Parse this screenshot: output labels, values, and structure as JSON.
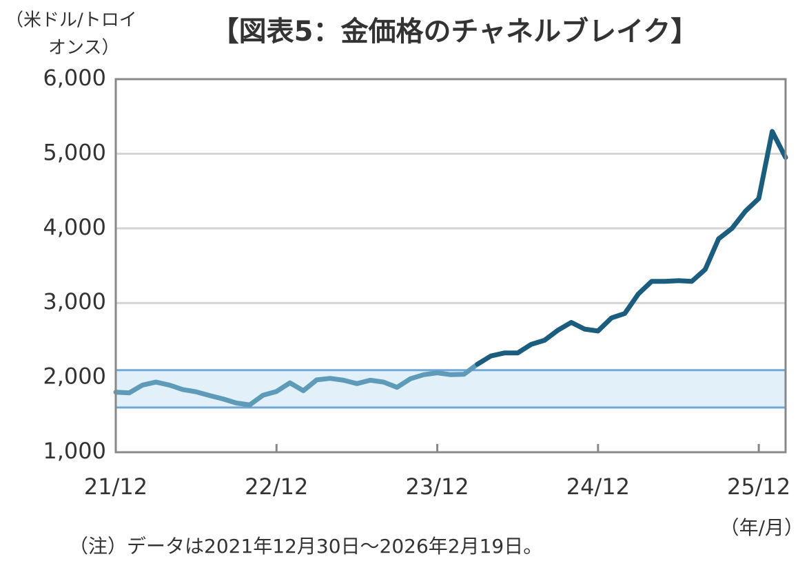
{
  "chart_data": {
    "type": "line",
    "title": "【図表5：金価格のチャネルブレイク】",
    "ylabel_lines": [
      "（米ドル/トロイ",
      "オンス）"
    ],
    "xlabel": "（年/月）",
    "note": "（注）データは2021年12月30日～2026年2月19日。",
    "x": [
      "21/12",
      "22/01",
      "22/02",
      "22/03",
      "22/04",
      "22/05",
      "22/06",
      "22/07",
      "22/08",
      "22/09",
      "22/10",
      "22/11",
      "22/12",
      "23/01",
      "23/02",
      "23/03",
      "23/04",
      "23/05",
      "23/06",
      "23/07",
      "23/08",
      "23/09",
      "23/10",
      "23/11",
      "23/12",
      "24/01",
      "24/02",
      "24/03",
      "24/04",
      "24/05",
      "24/06",
      "24/07",
      "24/08",
      "24/09",
      "24/10",
      "24/11",
      "24/12",
      "25/01",
      "25/02",
      "25/03",
      "25/04",
      "25/05",
      "25/06",
      "25/07",
      "25/08",
      "25/09",
      "25/10",
      "25/11",
      "25/12",
      "26/01",
      "26/02"
    ],
    "series": [
      {
        "color": "#5d9bb9",
        "values": [
          1805,
          1795,
          1900,
          1940,
          1900,
          1840,
          1810,
          1760,
          1715,
          1660,
          1635,
          1765,
          1815,
          1930,
          1825,
          1970,
          1990,
          1965,
          1920,
          1965,
          1940,
          1870,
          1985,
          2040,
          2065,
          2040,
          2045,
          2180,
          null,
          null,
          null,
          null,
          null,
          null,
          null,
          null,
          null,
          null,
          null,
          null,
          null,
          null,
          null,
          null,
          null,
          null,
          null,
          null,
          null,
          null,
          null
        ]
      },
      {
        "color": "#1b5d7e",
        "values": [
          null,
          null,
          null,
          null,
          null,
          null,
          null,
          null,
          null,
          null,
          null,
          null,
          null,
          null,
          null,
          null,
          null,
          null,
          null,
          null,
          null,
          null,
          null,
          null,
          null,
          null,
          null,
          2180,
          2290,
          2330,
          2330,
          2445,
          2500,
          2635,
          2740,
          2650,
          2625,
          2800,
          2860,
          3120,
          3290,
          3290,
          3300,
          3290,
          3450,
          3860,
          4000,
          4230,
          4400,
          5300,
          4950
        ]
      }
    ],
    "band": {
      "from": 1600,
      "to": 2100,
      "fill": "#e2f0fa",
      "edge": "#6fa8d8"
    },
    "xlim": [
      "21/12",
      "26/02"
    ],
    "xticks": [
      "21/12",
      "22/12",
      "23/12",
      "24/12",
      "25/12"
    ],
    "ylim": [
      1000,
      6000
    ],
    "yticks": [
      {
        "value": 1000,
        "label": "1,000"
      },
      {
        "value": 2000,
        "label": "2,000"
      },
      {
        "value": 3000,
        "label": "3,000"
      },
      {
        "value": 4000,
        "label": "4,000"
      },
      {
        "value": 5000,
        "label": "5,000"
      },
      {
        "value": 6000,
        "label": "6,000"
      }
    ],
    "grid": true
  }
}
